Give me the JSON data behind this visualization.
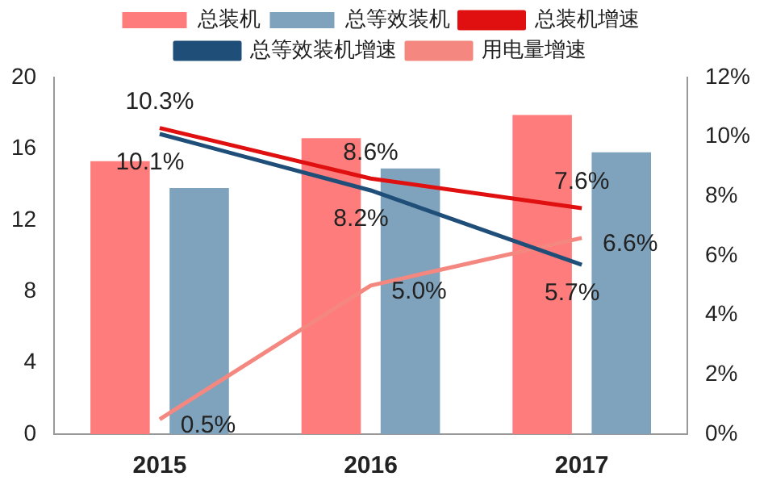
{
  "chart_data": {
    "type": "bar",
    "categories": [
      "2015",
      "2016",
      "2017"
    ],
    "series": [
      {
        "name": "总装机",
        "color": "#ff7c7c",
        "values": [
          15.3,
          16.6,
          17.9
        ]
      },
      {
        "name": "总等效装机",
        "color": "#7fa3bd",
        "values": [
          13.8,
          14.9,
          15.8
        ]
      },
      {
        "name": "总装机增速",
        "type": "line",
        "axis": "y2",
        "color": "#e01010",
        "values": [
          10.3,
          8.6,
          7.6
        ],
        "value_labels": [
          "10.3%",
          "8.6%",
          "7.6%"
        ]
      },
      {
        "name": "总等效装机增速",
        "type": "line",
        "axis": "y2",
        "color": "#1f4e79",
        "values": [
          10.1,
          8.2,
          5.7
        ],
        "value_labels": [
          "10.1%",
          "8.2%",
          "5.7%"
        ]
      },
      {
        "name": "用电量增速",
        "type": "line",
        "axis": "y2",
        "color": "#f4877f",
        "values": [
          0.5,
          5.0,
          6.6
        ],
        "value_labels": [
          "0.5%",
          "5.0%",
          "6.6%"
        ]
      }
    ],
    "ylim": [
      0,
      20
    ],
    "yticks": [
      0,
      4,
      8,
      12,
      16,
      20
    ],
    "y2lim": [
      0,
      12
    ],
    "y2ticks": [
      {
        "value": 0,
        "label": "0%"
      },
      {
        "value": 2,
        "label": "2%"
      },
      {
        "value": 4,
        "label": "4%"
      },
      {
        "value": 6,
        "label": "6%"
      },
      {
        "value": 8,
        "label": "8%"
      },
      {
        "value": 10,
        "label": "10%"
      },
      {
        "value": 12,
        "label": "12%"
      }
    ],
    "grid": false,
    "legend": "top",
    "marker": "none"
  }
}
